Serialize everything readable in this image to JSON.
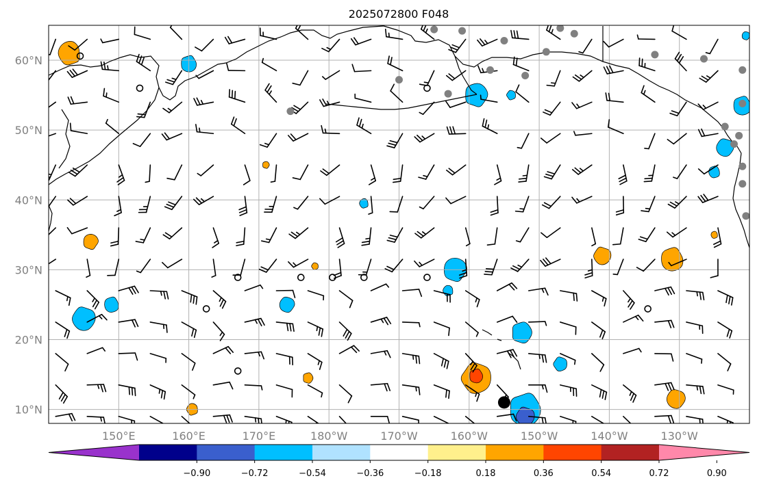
{
  "title": "2025072800 F048",
  "map": {
    "lat_ticks": [
      {
        "lat": 60,
        "label": "60°N"
      },
      {
        "lat": 50,
        "label": "50°N"
      },
      {
        "lat": 40,
        "label": "40°N"
      },
      {
        "lat": 30,
        "label": "30°N"
      },
      {
        "lat": 20,
        "label": "20°N"
      },
      {
        "lat": 10,
        "label": "10°N"
      }
    ],
    "lon_ticks": [
      {
        "lon": 150,
        "label": "150°E"
      },
      {
        "lon": 160,
        "label": "160°E"
      },
      {
        "lon": 170,
        "label": "170°E"
      },
      {
        "lon": 180,
        "label": "180°W"
      },
      {
        "lon": 190,
        "label": "170°W"
      },
      {
        "lon": 200,
        "label": "160°W"
      },
      {
        "lon": 210,
        "label": "150°W"
      },
      {
        "lon": 220,
        "label": "140°W"
      },
      {
        "lon": 230,
        "label": "130°W"
      }
    ],
    "lon_range": [
      140,
      240
    ],
    "lat_range": [
      8,
      65
    ],
    "grid": true
  },
  "colorbar": {
    "colors": [
      "#9932cc",
      "#00008b",
      "#3a5fcd",
      "#00bfff",
      "#b0e2ff",
      "#ffffff",
      "#fff08c",
      "#ffa500",
      "#ff4500",
      "#b22222",
      "#ff88aa"
    ],
    "tick_labels": [
      "−0.90",
      "−0.72",
      "−0.54",
      "−0.36",
      "−0.18",
      "0.18",
      "0.36",
      "0.54",
      "0.72",
      "0.90"
    ]
  },
  "fields": {
    "positive": [
      {
        "lon": 143,
        "lat": 61,
        "r": 2.0,
        "level": "orange"
      },
      {
        "lon": 146,
        "lat": 34,
        "r": 1.3,
        "level": "orange"
      },
      {
        "lon": 160.5,
        "lat": 10,
        "r": 1.0,
        "level": "orange"
      },
      {
        "lon": 171,
        "lat": 45,
        "r": 0.6,
        "level": "orange"
      },
      {
        "lon": 178,
        "lat": 30.5,
        "r": 0.6,
        "level": "orange"
      },
      {
        "lon": 177,
        "lat": 14.5,
        "r": 0.9,
        "level": "orange"
      },
      {
        "lon": 201,
        "lat": 14.5,
        "r": 2.6,
        "level": "orange"
      },
      {
        "lon": 201,
        "lat": 14.8,
        "r": 1.2,
        "level": "red"
      },
      {
        "lon": 219,
        "lat": 32,
        "r": 1.5,
        "level": "orange"
      },
      {
        "lon": 229,
        "lat": 31.5,
        "r": 2.0,
        "level": "orange"
      },
      {
        "lon": 229.5,
        "lat": 11.5,
        "r": 1.6,
        "level": "orange"
      },
      {
        "lon": 235,
        "lat": 35,
        "r": 0.6,
        "level": "orange"
      }
    ],
    "negative": [
      {
        "lon": 160,
        "lat": 59.5,
        "r": 1.4,
        "level": "cyan"
      },
      {
        "lon": 145,
        "lat": 23,
        "r": 2.0,
        "level": "cyan"
      },
      {
        "lon": 149,
        "lat": 25,
        "r": 1.3,
        "level": "cyan"
      },
      {
        "lon": 174,
        "lat": 25,
        "r": 1.3,
        "level": "cyan"
      },
      {
        "lon": 185,
        "lat": 39.5,
        "r": 0.8,
        "level": "cyan"
      },
      {
        "lon": 198,
        "lat": 30,
        "r": 2.0,
        "level": "cyan"
      },
      {
        "lon": 197,
        "lat": 27,
        "r": 0.9,
        "level": "cyan"
      },
      {
        "lon": 201,
        "lat": 55,
        "r": 2.0,
        "level": "cyan"
      },
      {
        "lon": 206,
        "lat": 55,
        "r": 0.8,
        "level": "cyan"
      },
      {
        "lon": 207.5,
        "lat": 21,
        "r": 1.8,
        "level": "cyan"
      },
      {
        "lon": 213,
        "lat": 16.5,
        "r": 1.2,
        "level": "cyan"
      },
      {
        "lon": 208,
        "lat": 10,
        "r": 2.8,
        "level": "cyan"
      },
      {
        "lon": 208,
        "lat": 9,
        "r": 1.6,
        "level": "blue"
      },
      {
        "lon": 239,
        "lat": 53.5,
        "r": 1.6,
        "level": "cyan"
      },
      {
        "lon": 236.5,
        "lat": 47.5,
        "r": 1.5,
        "level": "cyan"
      },
      {
        "lon": 235,
        "lat": 44,
        "r": 1.0,
        "level": "cyan"
      },
      {
        "lon": 239.5,
        "lat": 63.5,
        "r": 0.7,
        "level": "cyan"
      }
    ]
  },
  "stations": [
    {
      "lon": 195,
      "lat": 64.4
    },
    {
      "lon": 199,
      "lat": 64.2
    },
    {
      "lon": 205,
      "lat": 62.8
    },
    {
      "lon": 213,
      "lat": 64.6
    },
    {
      "lon": 215,
      "lat": 63.8
    },
    {
      "lon": 211,
      "lat": 61.2
    },
    {
      "lon": 203,
      "lat": 58.6
    },
    {
      "lon": 208,
      "lat": 57.8
    },
    {
      "lon": 197,
      "lat": 55.2
    },
    {
      "lon": 190,
      "lat": 57.2
    },
    {
      "lon": 174.5,
      "lat": 52.7
    },
    {
      "lon": 226.5,
      "lat": 60.8
    },
    {
      "lon": 233.5,
      "lat": 60.2
    },
    {
      "lon": 239,
      "lat": 58.6
    },
    {
      "lon": 239,
      "lat": 53.8
    },
    {
      "lon": 236.5,
      "lat": 50.5
    },
    {
      "lon": 238.5,
      "lat": 49.2
    },
    {
      "lon": 237.8,
      "lat": 48.0
    },
    {
      "lon": 239,
      "lat": 44.8
    },
    {
      "lon": 239,
      "lat": 42.3
    },
    {
      "lon": 239.5,
      "lat": 37.7
    }
  ],
  "calm_points": [
    {
      "lon": 144.5,
      "lat": 60.6
    },
    {
      "lon": 153,
      "lat": 56.0
    },
    {
      "lon": 194,
      "lat": 56.0
    },
    {
      "lon": 167,
      "lat": 28.9
    },
    {
      "lon": 176,
      "lat": 28.9
    },
    {
      "lon": 180.5,
      "lat": 28.9
    },
    {
      "lon": 185,
      "lat": 28.9
    },
    {
      "lon": 194,
      "lat": 28.9
    },
    {
      "lon": 162.5,
      "lat": 24.4
    },
    {
      "lon": 167,
      "lat": 15.5
    },
    {
      "lon": 225.5,
      "lat": 24.4
    }
  ],
  "tc_center": {
    "lon": 205,
    "lat": 11.0
  },
  "barb_grid": {
    "lons": [
      141,
      145.5,
      150,
      154.5,
      159,
      163.5,
      168,
      172.5,
      177,
      181.5,
      186,
      190.5,
      195,
      199.5,
      204,
      208.5,
      213,
      217.5,
      222,
      226.5,
      231,
      235.5
    ],
    "lats": [
      63,
      58.5,
      54,
      49.5,
      45,
      40.5,
      36,
      31.5,
      27,
      22.5,
      18,
      13.5,
      9
    ]
  }
}
